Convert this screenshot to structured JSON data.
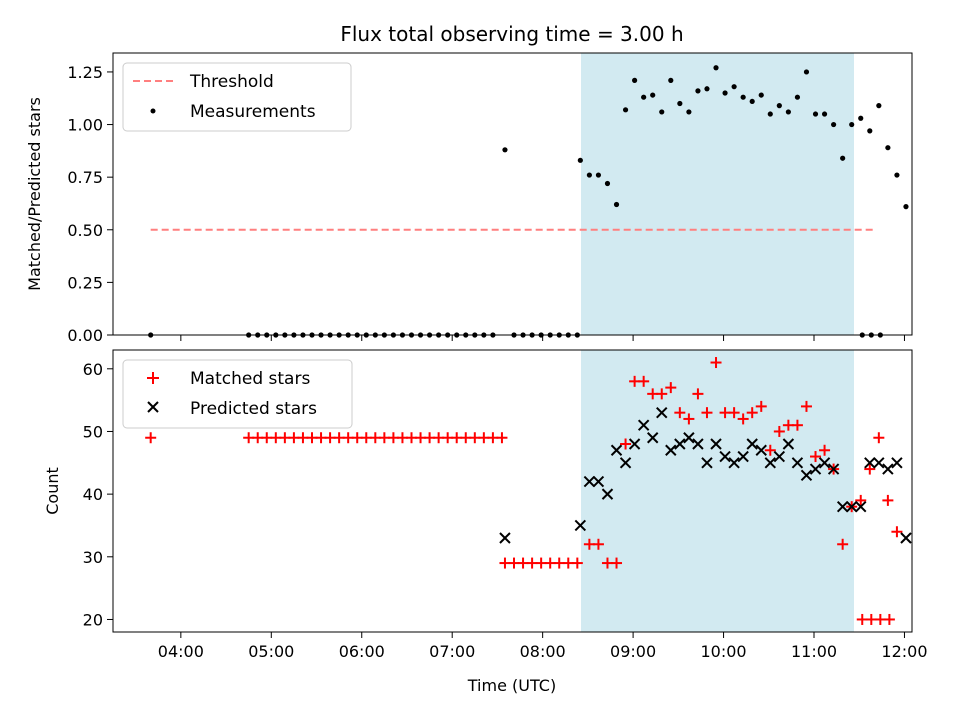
{
  "title": "Flux total observing time = 3.00 h",
  "colors": {
    "threshold": "#ff7f7f",
    "measurement": "#000000",
    "matched": "#ff0000",
    "predicted": "#000000",
    "window_fill": "#add8e6"
  },
  "chart_data": [
    {
      "type": "scatter",
      "ylabel": "Matched/Predicted stars",
      "xlim": [
        "03:15",
        "12:05"
      ],
      "ylim": [
        0,
        1.34
      ],
      "yticks": [
        0,
        0.25,
        0.5,
        0.75,
        1.0,
        1.25
      ],
      "ytick_labels": [
        "0.00",
        "0.25",
        "0.50",
        "0.75",
        "1.00",
        "1.25"
      ],
      "highlight_window": [
        "08:25",
        "11:25"
      ],
      "legend": {
        "placement": "upper-left",
        "entries": [
          "Threshold",
          "Measurements"
        ]
      },
      "threshold": {
        "name": "Threshold",
        "y": 0.5,
        "x_range": [
          "03:40",
          "11:40"
        ]
      },
      "series": [
        {
          "name": "Measurements",
          "points": [
            [
              "03:40",
              0
            ],
            [
              "04:45",
              0
            ],
            [
              "04:51",
              0
            ],
            [
              "04:57",
              0
            ],
            [
              "05:03",
              0
            ],
            [
              "05:09",
              0
            ],
            [
              "05:15",
              0
            ],
            [
              "05:21",
              0
            ],
            [
              "05:27",
              0
            ],
            [
              "05:33",
              0
            ],
            [
              "05:39",
              0
            ],
            [
              "05:45",
              0
            ],
            [
              "05:51",
              0
            ],
            [
              "05:57",
              0
            ],
            [
              "06:03",
              0
            ],
            [
              "06:09",
              0
            ],
            [
              "06:15",
              0
            ],
            [
              "06:21",
              0
            ],
            [
              "06:27",
              0
            ],
            [
              "06:33",
              0
            ],
            [
              "06:39",
              0
            ],
            [
              "06:45",
              0
            ],
            [
              "06:51",
              0
            ],
            [
              "06:57",
              0
            ],
            [
              "07:03",
              0
            ],
            [
              "07:09",
              0
            ],
            [
              "07:15",
              0
            ],
            [
              "07:21",
              0
            ],
            [
              "07:27",
              0
            ],
            [
              "07:35",
              0.88
            ],
            [
              "07:41",
              0
            ],
            [
              "07:47",
              0
            ],
            [
              "07:53",
              0
            ],
            [
              "07:59",
              0
            ],
            [
              "08:05",
              0
            ],
            [
              "08:11",
              0
            ],
            [
              "08:17",
              0
            ],
            [
              "08:23",
              0
            ],
            [
              "08:25",
              0.83
            ],
            [
              "08:31",
              0.76
            ],
            [
              "08:37",
              0.76
            ],
            [
              "08:43",
              0.72
            ],
            [
              "08:49",
              0.62
            ],
            [
              "08:55",
              1.07
            ],
            [
              "09:01",
              1.21
            ],
            [
              "09:07",
              1.13
            ],
            [
              "09:13",
              1.14
            ],
            [
              "09:19",
              1.06
            ],
            [
              "09:25",
              1.21
            ],
            [
              "09:31",
              1.1
            ],
            [
              "09:37",
              1.06
            ],
            [
              "09:43",
              1.16
            ],
            [
              "09:49",
              1.17
            ],
            [
              "09:55",
              1.27
            ],
            [
              "10:01",
              1.15
            ],
            [
              "10:07",
              1.18
            ],
            [
              "10:13",
              1.13
            ],
            [
              "10:19",
              1.11
            ],
            [
              "10:25",
              1.14
            ],
            [
              "10:31",
              1.05
            ],
            [
              "10:37",
              1.09
            ],
            [
              "10:43",
              1.06
            ],
            [
              "10:49",
              1.13
            ],
            [
              "10:55",
              1.25
            ],
            [
              "11:01",
              1.05
            ],
            [
              "11:07",
              1.05
            ],
            [
              "11:13",
              1.0
            ],
            [
              "11:19",
              0.84
            ],
            [
              "11:25",
              1.0
            ],
            [
              "11:31",
              1.03
            ],
            [
              "11:37",
              0.97
            ],
            [
              "11:43",
              1.09
            ],
            [
              "11:49",
              0.89
            ],
            [
              "11:55",
              0.76
            ],
            [
              "12:01",
              0.61
            ],
            [
              "11:32",
              0
            ],
            [
              "11:38",
              0
            ],
            [
              "11:44",
              0
            ]
          ]
        }
      ]
    },
    {
      "type": "scatter",
      "xlabel": "Time (UTC)",
      "ylabel": "Count",
      "xlim": [
        "03:15",
        "12:05"
      ],
      "ylim": [
        18,
        63
      ],
      "xtick_labels": [
        "04:00",
        "05:00",
        "06:00",
        "07:00",
        "08:00",
        "09:00",
        "10:00",
        "11:00",
        "12:00"
      ],
      "yticks": [
        20,
        30,
        40,
        50,
        60
      ],
      "highlight_window": [
        "08:25",
        "11:25"
      ],
      "legend": {
        "placement": "upper-left",
        "entries": [
          "Matched stars",
          "Predicted stars"
        ]
      },
      "series": [
        {
          "name": "Matched stars",
          "points": [
            [
              "03:40",
              49
            ],
            [
              "04:45",
              49
            ],
            [
              "04:51",
              49
            ],
            [
              "04:57",
              49
            ],
            [
              "05:03",
              49
            ],
            [
              "05:09",
              49
            ],
            [
              "05:15",
              49
            ],
            [
              "05:21",
              49
            ],
            [
              "05:27",
              49
            ],
            [
              "05:33",
              49
            ],
            [
              "05:39",
              49
            ],
            [
              "05:45",
              49
            ],
            [
              "05:51",
              49
            ],
            [
              "05:57",
              49
            ],
            [
              "06:03",
              49
            ],
            [
              "06:09",
              49
            ],
            [
              "06:15",
              49
            ],
            [
              "06:21",
              49
            ],
            [
              "06:27",
              49
            ],
            [
              "06:33",
              49
            ],
            [
              "06:39",
              49
            ],
            [
              "06:45",
              49
            ],
            [
              "06:51",
              49
            ],
            [
              "06:57",
              49
            ],
            [
              "07:03",
              49
            ],
            [
              "07:09",
              49
            ],
            [
              "07:15",
              49
            ],
            [
              "07:21",
              49
            ],
            [
              "07:27",
              49
            ],
            [
              "07:33",
              49
            ],
            [
              "07:35",
              29
            ],
            [
              "07:41",
              29
            ],
            [
              "07:47",
              29
            ],
            [
              "07:53",
              29
            ],
            [
              "07:59",
              29
            ],
            [
              "08:05",
              29
            ],
            [
              "08:11",
              29
            ],
            [
              "08:17",
              29
            ],
            [
              "08:23",
              29
            ],
            [
              "08:31",
              32
            ],
            [
              "08:37",
              32
            ],
            [
              "08:43",
              29
            ],
            [
              "08:49",
              29
            ],
            [
              "08:55",
              48
            ],
            [
              "09:01",
              58
            ],
            [
              "09:07",
              58
            ],
            [
              "09:13",
              56
            ],
            [
              "09:19",
              56
            ],
            [
              "09:25",
              57
            ],
            [
              "09:31",
              53
            ],
            [
              "09:37",
              52
            ],
            [
              "09:43",
              56
            ],
            [
              "09:49",
              53
            ],
            [
              "09:55",
              61
            ],
            [
              "10:01",
              53
            ],
            [
              "10:07",
              53
            ],
            [
              "10:13",
              52
            ],
            [
              "10:19",
              53
            ],
            [
              "10:25",
              54
            ],
            [
              "10:31",
              47
            ],
            [
              "10:37",
              50
            ],
            [
              "10:43",
              51
            ],
            [
              "10:49",
              51
            ],
            [
              "10:55",
              54
            ],
            [
              "11:01",
              46
            ],
            [
              "11:07",
              47
            ],
            [
              "11:13",
              44
            ],
            [
              "11:19",
              32
            ],
            [
              "11:25",
              38
            ],
            [
              "11:31",
              39
            ],
            [
              "11:37",
              44
            ],
            [
              "11:43",
              49
            ],
            [
              "11:49",
              39
            ],
            [
              "11:55",
              34
            ],
            [
              "11:32",
              20
            ],
            [
              "11:38",
              20
            ],
            [
              "11:44",
              20
            ],
            [
              "11:50",
              20
            ]
          ]
        },
        {
          "name": "Predicted stars",
          "points": [
            [
              "07:35",
              33
            ],
            [
              "08:25",
              35
            ],
            [
              "08:31",
              42
            ],
            [
              "08:37",
              42
            ],
            [
              "08:43",
              40
            ],
            [
              "08:49",
              47
            ],
            [
              "08:55",
              45
            ],
            [
              "09:01",
              48
            ],
            [
              "09:07",
              51
            ],
            [
              "09:13",
              49
            ],
            [
              "09:19",
              53
            ],
            [
              "09:25",
              47
            ],
            [
              "09:31",
              48
            ],
            [
              "09:37",
              49
            ],
            [
              "09:43",
              48
            ],
            [
              "09:49",
              45
            ],
            [
              "09:55",
              48
            ],
            [
              "10:01",
              46
            ],
            [
              "10:07",
              45
            ],
            [
              "10:13",
              46
            ],
            [
              "10:19",
              48
            ],
            [
              "10:25",
              47
            ],
            [
              "10:31",
              45
            ],
            [
              "10:37",
              46
            ],
            [
              "10:43",
              48
            ],
            [
              "10:49",
              45
            ],
            [
              "10:55",
              43
            ],
            [
              "11:01",
              44
            ],
            [
              "11:07",
              45
            ],
            [
              "11:13",
              44
            ],
            [
              "11:19",
              38
            ],
            [
              "11:25",
              38
            ],
            [
              "11:31",
              38
            ],
            [
              "11:37",
              45
            ],
            [
              "11:43",
              45
            ],
            [
              "11:49",
              44
            ],
            [
              "11:55",
              45
            ],
            [
              "12:01",
              33
            ]
          ]
        }
      ]
    }
  ]
}
